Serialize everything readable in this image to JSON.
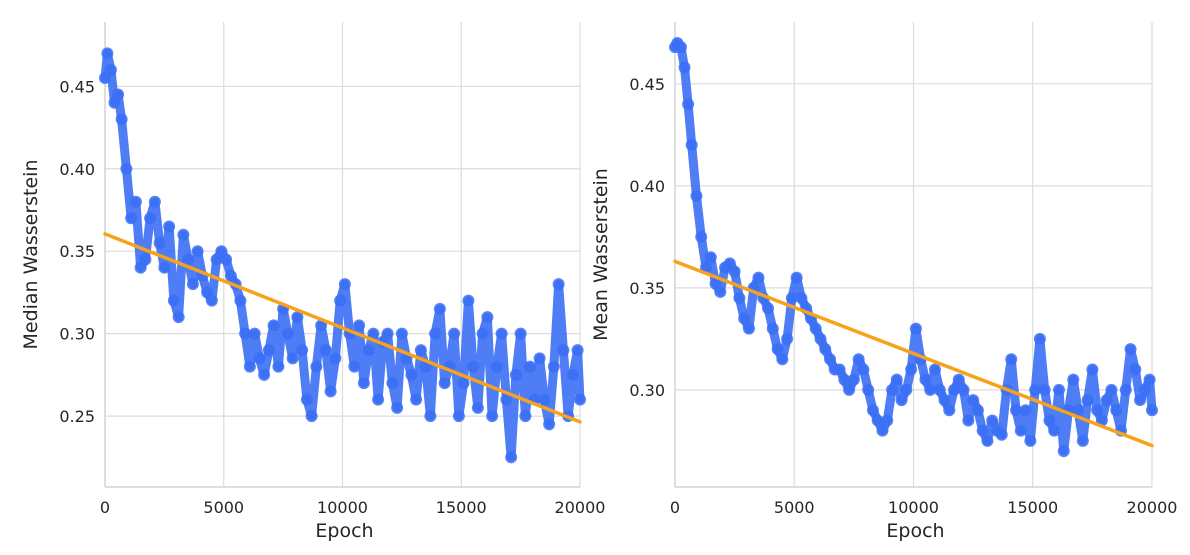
{
  "chart_data": [
    {
      "type": "scatter",
      "xlabel": "Epoch",
      "ylabel": "Median Wasserstein",
      "xlim": [
        0,
        20000
      ],
      "ylim": [
        0.207,
        0.489
      ],
      "xticks": [
        0,
        5000,
        10000,
        15000,
        20000
      ],
      "xtick_labels": [
        "0",
        "5000",
        "10000",
        "15000",
        "20000"
      ],
      "yticks": [
        0.25,
        0.3,
        0.35,
        0.4,
        0.45
      ],
      "ytick_labels": [
        "0.25",
        "0.30",
        "0.35",
        "0.40",
        "0.45"
      ],
      "grid": true,
      "series": [
        {
          "kind": "points",
          "color": "#3b6ff5",
          "x": [
            0,
            100,
            250,
            400,
            550,
            700,
            900,
            1100,
            1300,
            1500,
            1700,
            1900,
            2100,
            2300,
            2500,
            2700,
            2900,
            3100,
            3300,
            3500,
            3700,
            3900,
            4100,
            4300,
            4500,
            4700,
            4900,
            5100,
            5300,
            5500,
            5700,
            5900,
            6100,
            6300,
            6500,
            6700,
            6900,
            7100,
            7300,
            7500,
            7700,
            7900,
            8100,
            8300,
            8500,
            8700,
            8900,
            9100,
            9300,
            9500,
            9700,
            9900,
            10100,
            10300,
            10500,
            10700,
            10900,
            11100,
            11300,
            11500,
            11700,
            11900,
            12100,
            12300,
            12500,
            12700,
            12900,
            13100,
            13300,
            13500,
            13700,
            13900,
            14100,
            14300,
            14500,
            14700,
            14900,
            15100,
            15300,
            15500,
            15700,
            15900,
            16100,
            16300,
            16500,
            16700,
            16900,
            17100,
            17300,
            17500,
            17700,
            17900,
            18100,
            18300,
            18500,
            18700,
            18900,
            19100,
            19300,
            19500,
            19700,
            19900,
            20000
          ],
          "y": [
            0.455,
            0.47,
            0.46,
            0.44,
            0.445,
            0.43,
            0.4,
            0.37,
            0.38,
            0.34,
            0.345,
            0.37,
            0.38,
            0.355,
            0.34,
            0.365,
            0.32,
            0.31,
            0.36,
            0.345,
            0.33,
            0.35,
            0.335,
            0.325,
            0.32,
            0.345,
            0.35,
            0.345,
            0.335,
            0.33,
            0.32,
            0.3,
            0.28,
            0.3,
            0.285,
            0.275,
            0.29,
            0.305,
            0.28,
            0.315,
            0.3,
            0.285,
            0.31,
            0.29,
            0.26,
            0.25,
            0.28,
            0.305,
            0.29,
            0.265,
            0.285,
            0.32,
            0.33,
            0.3,
            0.28,
            0.305,
            0.27,
            0.29,
            0.3,
            0.26,
            0.295,
            0.3,
            0.27,
            0.255,
            0.3,
            0.285,
            0.275,
            0.26,
            0.29,
            0.28,
            0.25,
            0.3,
            0.315,
            0.27,
            0.28,
            0.3,
            0.25,
            0.27,
            0.32,
            0.28,
            0.255,
            0.3,
            0.31,
            0.25,
            0.28,
            0.3,
            0.26,
            0.225,
            0.275,
            0.3,
            0.25,
            0.28,
            0.26,
            0.285,
            0.26,
            0.245,
            0.28,
            0.33,
            0.29,
            0.25,
            0.275,
            0.29,
            0.26
          ]
        },
        {
          "kind": "trend",
          "color": "#f7a21b",
          "x": [
            0,
            20000
          ],
          "y": [
            0.3605,
            0.2465
          ]
        }
      ]
    },
    {
      "type": "scatter",
      "xlabel": "Epoch",
      "ylabel": "Mean Wasserstein",
      "xlim": [
        0,
        20000
      ],
      "ylim": [
        0.2524,
        0.4803
      ],
      "xticks": [
        0,
        5000,
        10000,
        15000,
        20000
      ],
      "xtick_labels": [
        "0",
        "5000",
        "10000",
        "15000",
        "20000"
      ],
      "yticks": [
        0.3,
        0.35,
        0.4,
        0.45
      ],
      "ytick_labels": [
        "0.30",
        "0.35",
        "0.40",
        "0.45"
      ],
      "grid": true,
      "series": [
        {
          "kind": "points",
          "color": "#3b6ff5",
          "x": [
            0,
            100,
            250,
            400,
            550,
            700,
            900,
            1100,
            1300,
            1500,
            1700,
            1900,
            2100,
            2300,
            2500,
            2700,
            2900,
            3100,
            3300,
            3500,
            3700,
            3900,
            4100,
            4300,
            4500,
            4700,
            4900,
            5100,
            5300,
            5500,
            5700,
            5900,
            6100,
            6300,
            6500,
            6700,
            6900,
            7100,
            7300,
            7500,
            7700,
            7900,
            8100,
            8300,
            8500,
            8700,
            8900,
            9100,
            9300,
            9500,
            9700,
            9900,
            10100,
            10300,
            10500,
            10700,
            10900,
            11100,
            11300,
            11500,
            11700,
            11900,
            12100,
            12300,
            12500,
            12700,
            12900,
            13100,
            13300,
            13500,
            13700,
            13900,
            14100,
            14300,
            14500,
            14700,
            14900,
            15100,
            15300,
            15500,
            15700,
            15900,
            16100,
            16300,
            16500,
            16700,
            16900,
            17100,
            17300,
            17500,
            17700,
            17900,
            18100,
            18300,
            18500,
            18700,
            18900,
            19100,
            19300,
            19500,
            19700,
            19900,
            20000
          ],
          "y": [
            0.468,
            0.47,
            0.468,
            0.458,
            0.44,
            0.42,
            0.395,
            0.375,
            0.36,
            0.365,
            0.352,
            0.348,
            0.36,
            0.362,
            0.358,
            0.345,
            0.335,
            0.33,
            0.35,
            0.355,
            0.345,
            0.34,
            0.33,
            0.32,
            0.315,
            0.325,
            0.345,
            0.355,
            0.345,
            0.34,
            0.335,
            0.33,
            0.325,
            0.32,
            0.315,
            0.31,
            0.31,
            0.305,
            0.3,
            0.305,
            0.315,
            0.31,
            0.3,
            0.29,
            0.285,
            0.28,
            0.285,
            0.3,
            0.305,
            0.295,
            0.3,
            0.31,
            0.33,
            0.315,
            0.305,
            0.3,
            0.31,
            0.3,
            0.295,
            0.29,
            0.3,
            0.305,
            0.3,
            0.285,
            0.295,
            0.29,
            0.28,
            0.275,
            0.285,
            0.28,
            0.278,
            0.3,
            0.315,
            0.29,
            0.28,
            0.29,
            0.275,
            0.3,
            0.325,
            0.3,
            0.285,
            0.28,
            0.3,
            0.27,
            0.29,
            0.305,
            0.29,
            0.275,
            0.295,
            0.31,
            0.29,
            0.285,
            0.295,
            0.3,
            0.29,
            0.28,
            0.3,
            0.32,
            0.31,
            0.295,
            0.3,
            0.305,
            0.29
          ]
        },
        {
          "kind": "trend",
          "color": "#f7a21b",
          "x": [
            0,
            20000
          ],
          "y": [
            0.363,
            0.2727
          ]
        }
      ]
    }
  ]
}
